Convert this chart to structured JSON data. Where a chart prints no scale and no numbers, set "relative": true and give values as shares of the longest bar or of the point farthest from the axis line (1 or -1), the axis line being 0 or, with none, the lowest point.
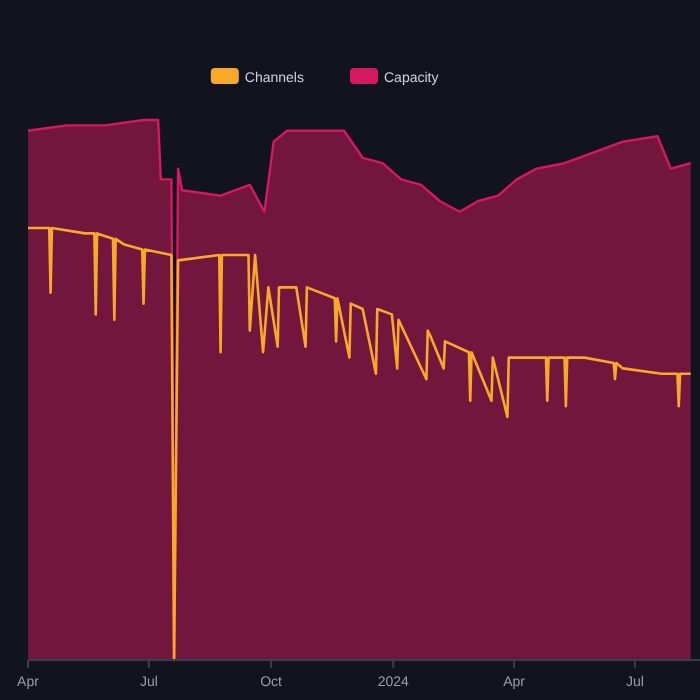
{
  "chart_data": {
    "type": "area",
    "relative": true,
    "legend": "top",
    "xlim": [
      "2023-04-01",
      "2024-08-19"
    ],
    "xticks": [
      {
        "value": "2023-04-01",
        "label": "Apr"
      },
      {
        "value": "2023-07-01",
        "label": "Jul"
      },
      {
        "value": "2023-10-01",
        "label": "Oct"
      },
      {
        "value": "2024-01-01",
        "label": "2024"
      },
      {
        "value": "2024-04-01",
        "label": "Apr"
      },
      {
        "value": "2024-07-01",
        "label": "Jul"
      }
    ],
    "series": [
      {
        "name": "Capacity",
        "color": "#d6185e",
        "x": [
          "2023-04-01",
          "2023-04-30",
          "2023-05-29",
          "2023-06-27",
          "2023-07-08",
          "2023-07-10",
          "2023-07-18",
          "2023-07-20",
          "2023-07-23",
          "2023-07-26",
          "2023-08-24",
          "2023-09-15",
          "2023-09-26",
          "2023-10-03",
          "2023-10-13",
          "2023-11-03",
          "2023-11-25",
          "2023-12-09",
          "2023-12-24",
          "2024-01-07",
          "2024-01-22",
          "2024-02-05",
          "2024-02-20",
          "2024-03-05",
          "2024-03-20",
          "2024-04-03",
          "2024-04-18",
          "2024-05-09",
          "2024-05-31",
          "2024-06-22",
          "2024-07-18",
          "2024-07-28",
          "2024-08-12"
        ],
        "values": [
          0.98,
          0.99,
          0.99,
          1,
          1,
          0.89,
          0.89,
          0,
          0.91,
          0.87,
          0.86,
          0.88,
          0.83,
          0.96,
          0.98,
          0.98,
          0.98,
          0.93,
          0.92,
          0.89,
          0.88,
          0.85,
          0.83,
          0.85,
          0.86,
          0.89,
          0.91,
          0.92,
          0.94,
          0.96,
          0.97,
          0.91,
          0.92
        ]
      },
      {
        "name": "Channels",
        "type": "line",
        "color": "#f7a928",
        "x": [
          "2023-04-01",
          "2023-04-17",
          "2023-04-18",
          "2023-04-19",
          "2023-05-14",
          "2023-05-21",
          "2023-05-22",
          "2023-05-23",
          "2023-06-04",
          "2023-06-05",
          "2023-06-06",
          "2023-06-12",
          "2023-06-26",
          "2023-06-27",
          "2023-06-28",
          "2023-07-18",
          "2023-07-20",
          "2023-07-23",
          "2023-08-23",
          "2023-08-24",
          "2023-08-25",
          "2023-09-14",
          "2023-09-15",
          "2023-09-19",
          "2023-09-25",
          "2023-09-29",
          "2023-10-06",
          "2023-10-07",
          "2023-10-20",
          "2023-10-27",
          "2023-10-28",
          "2023-11-18",
          "2023-11-19",
          "2023-11-20",
          "2023-11-29",
          "2023-11-30",
          "2023-12-09",
          "2023-12-19",
          "2023-12-20",
          "2023-12-31",
          "2024-01-04",
          "2024-01-05",
          "2024-01-26",
          "2024-01-27",
          "2024-01-29",
          "2024-02-08",
          "2024-02-09",
          "2024-02-27",
          "2024-02-28",
          "2024-02-29",
          "2024-03-15",
          "2024-03-16",
          "2024-03-27",
          "2024-03-28",
          "2024-04-25",
          "2024-04-26",
          "2024-04-27",
          "2024-05-09",
          "2024-05-10",
          "2024-05-11",
          "2024-05-24",
          "2024-06-15",
          "2024-06-16",
          "2024-06-17",
          "2024-06-22",
          "2024-07-21",
          "2024-08-02",
          "2024-08-03",
          "2024-08-04",
          "2024-08-12"
        ],
        "values": [
          0.8,
          0.8,
          0.68,
          0.8,
          0.79,
          0.79,
          0.64,
          0.79,
          0.78,
          0.63,
          0.78,
          0.77,
          0.76,
          0.66,
          0.76,
          0.75,
          0,
          0.74,
          0.75,
          0.57,
          0.75,
          0.75,
          0.61,
          0.75,
          0.57,
          0.69,
          0.58,
          0.69,
          0.69,
          0.58,
          0.69,
          0.67,
          0.59,
          0.67,
          0.56,
          0.66,
          0.65,
          0.53,
          0.65,
          0.64,
          0.54,
          0.63,
          0.52,
          0.61,
          0.6,
          0.54,
          0.59,
          0.57,
          0.48,
          0.57,
          0.48,
          0.56,
          0.45,
          0.56,
          0.56,
          0.48,
          0.56,
          0.56,
          0.47,
          0.56,
          0.56,
          0.55,
          0.52,
          0.55,
          0.54,
          0.53,
          0.53,
          0.47,
          0.53,
          0.53
        ]
      }
    ]
  }
}
